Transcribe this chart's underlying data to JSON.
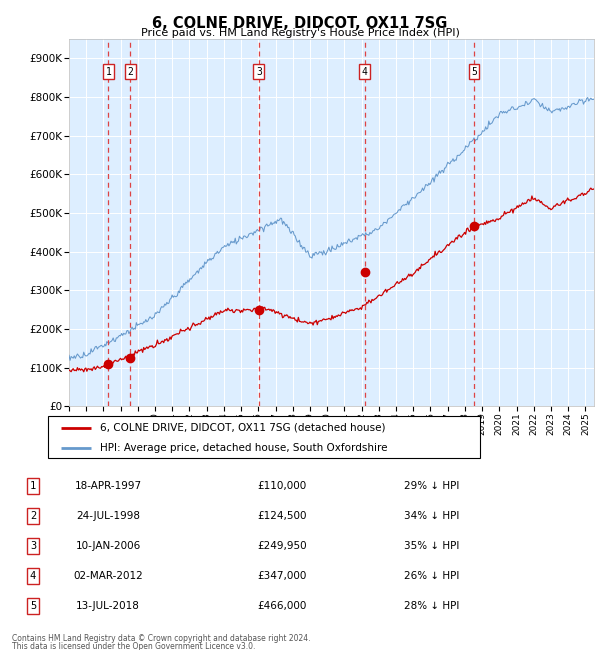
{
  "title": "6, COLNE DRIVE, DIDCOT, OX11 7SG",
  "subtitle": "Price paid vs. HM Land Registry's House Price Index (HPI)",
  "legend_line1": "6, COLNE DRIVE, DIDCOT, OX11 7SG (detached house)",
  "legend_line2": "HPI: Average price, detached house, South Oxfordshire",
  "footer1": "Contains HM Land Registry data © Crown copyright and database right 2024.",
  "footer2": "This data is licensed under the Open Government Licence v3.0.",
  "sales": [
    {
      "num": 1,
      "date": "18-APR-1997",
      "price": 110000,
      "pct": "29% ↓ HPI",
      "year": 1997.29
    },
    {
      "num": 2,
      "date": "24-JUL-1998",
      "price": 124500,
      "pct": "34% ↓ HPI",
      "year": 1998.56
    },
    {
      "num": 3,
      "date": "10-JAN-2006",
      "price": 249950,
      "pct": "35% ↓ HPI",
      "year": 2006.03
    },
    {
      "num": 4,
      "date": "02-MAR-2012",
      "price": 347000,
      "pct": "26% ↓ HPI",
      "year": 2012.17
    },
    {
      "num": 5,
      "date": "13-JUL-2018",
      "price": 466000,
      "pct": "28% ↓ HPI",
      "year": 2018.53
    }
  ],
  "xlim": [
    1995,
    2025.5
  ],
  "ylim": [
    0,
    950000
  ],
  "yticks": [
    0,
    100000,
    200000,
    300000,
    400000,
    500000,
    600000,
    700000,
    800000,
    900000
  ],
  "ytick_labels": [
    "£0",
    "£100K",
    "£200K",
    "£300K",
    "£400K",
    "£500K",
    "£600K",
    "£700K",
    "£800K",
    "£900K"
  ],
  "red_line_color": "#cc0000",
  "blue_line_color": "#6699cc",
  "sale_marker_color": "#cc0000",
  "sale_vline_color": "#dd4444",
  "background_color": "#ddeeff",
  "white": "#ffffff",
  "grid_color": "#ffffff",
  "box_edge_color": "#cc2222"
}
